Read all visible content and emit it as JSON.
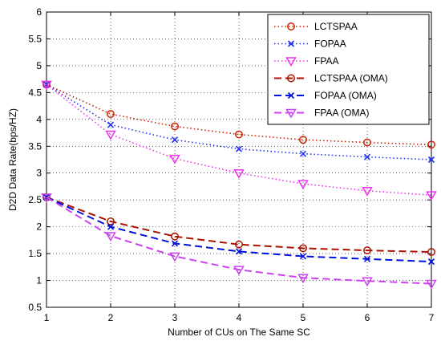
{
  "chart_data": {
    "type": "line",
    "title": "",
    "xlabel": "Number of CUs on The Same SC",
    "ylabel": "D2D Data Rate(bps/HZ)",
    "xlim": [
      1,
      7
    ],
    "ylim": [
      0.5,
      6
    ],
    "xticks": [
      "1",
      "2",
      "3",
      "4",
      "5",
      "6",
      "7"
    ],
    "yticks": [
      "0.5",
      "1",
      "1.5",
      "2",
      "2.5",
      "3",
      "3.5",
      "4",
      "4.5",
      "5",
      "5.5",
      "6"
    ],
    "grid": true,
    "legend_position": "top-right",
    "x": [
      1,
      2,
      3,
      4,
      5,
      6,
      7
    ],
    "series": [
      {
        "name": "LCTSPAA",
        "values": [
          4.65,
          4.1,
          3.87,
          3.72,
          3.62,
          3.57,
          3.53
        ],
        "color": "#cc2200",
        "dash": "dotted",
        "marker": "circle"
      },
      {
        "name": "FOPAA",
        "values": [
          4.65,
          3.9,
          3.62,
          3.45,
          3.36,
          3.3,
          3.25
        ],
        "color": "#2233ee",
        "dash": "dotted",
        "marker": "x"
      },
      {
        "name": "FPAA",
        "values": [
          4.65,
          3.72,
          3.27,
          3.0,
          2.8,
          2.67,
          2.59
        ],
        "color": "#ee33ee",
        "dash": "dotted",
        "marker": "triangle-down"
      },
      {
        "name": "LCTSPAA (OMA)",
        "values": [
          2.55,
          2.1,
          1.82,
          1.67,
          1.6,
          1.56,
          1.53
        ],
        "color": "#aa1100",
        "dash": "dashed",
        "marker": "circle"
      },
      {
        "name": "FOPAA (OMA)",
        "values": [
          2.55,
          2.0,
          1.69,
          1.54,
          1.45,
          1.4,
          1.35
        ],
        "color": "#0011dd",
        "dash": "dashed",
        "marker": "x"
      },
      {
        "name": "FPAA (OMA)",
        "values": [
          2.55,
          1.83,
          1.45,
          1.2,
          1.05,
          0.99,
          0.94
        ],
        "color": "#cc44ee",
        "dash": "dashed",
        "marker": "triangle-down"
      }
    ]
  }
}
